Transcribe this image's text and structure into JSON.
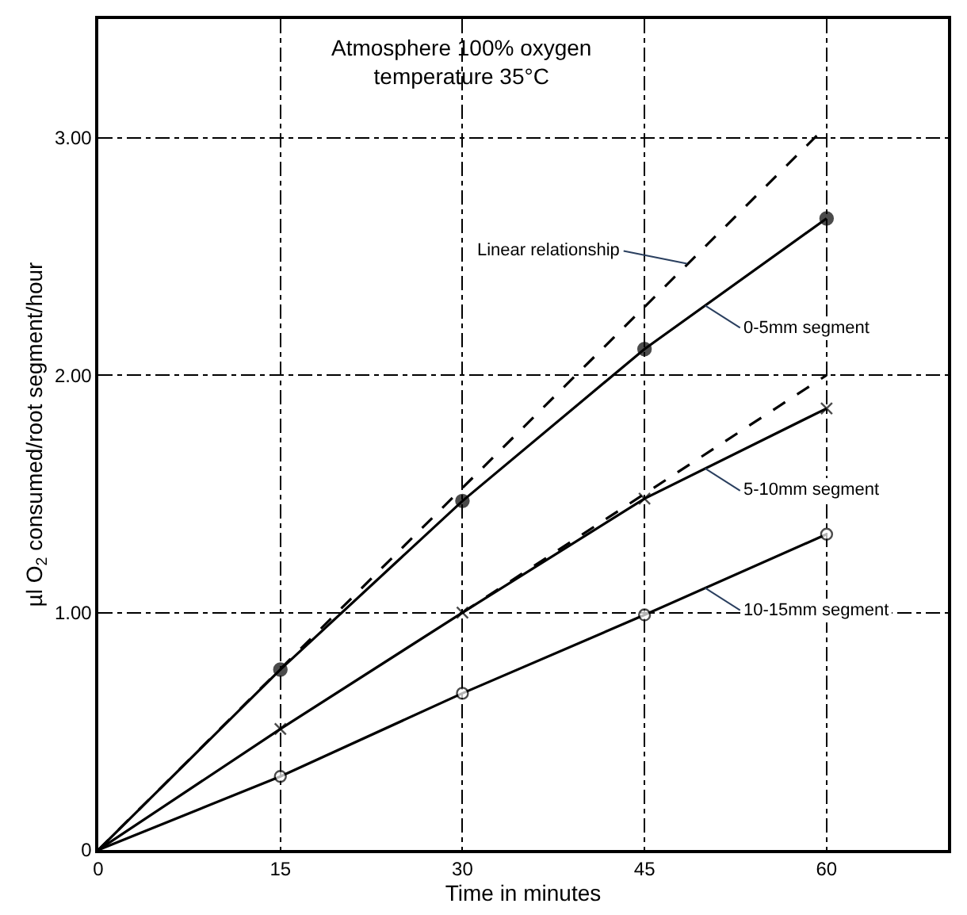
{
  "chart_data": {
    "type": "line",
    "title": "Atmosphere 100% oxygen\ntemperature 35°C",
    "xlabel": "Time in minutes",
    "ylabel": "µl O$_{2}$ consumed/root segment/hour",
    "x": [
      0,
      15,
      30,
      45,
      60
    ],
    "series": [
      {
        "name": "0-5mm segment",
        "color": "#000000",
        "values": [
          0,
          0.76,
          1.47,
          2.11,
          2.66
        ],
        "marker": "circle",
        "line_style": "solid"
      },
      {
        "name": "5-10mm segment",
        "color": "#000000",
        "values": [
          0,
          0.51,
          1.0,
          1.48,
          1.86
        ],
        "marker": "cross",
        "line_style": "solid"
      },
      {
        "name": "10-15mm segment",
        "color": "#000000",
        "values": [
          0,
          0.31,
          0.66,
          0.99,
          1.33
        ],
        "marker": "circle-open",
        "line_style": "solid"
      },
      {
        "color": "#000000",
        "x": [
          0,
          60
        ],
        "values": [
          0,
          3.05
        ],
        "marker": "none",
        "line_style": "dashed"
      },
      {
        "color": "#000000",
        "x": [
          30,
          60
        ],
        "values": [
          1.0,
          2.0
        ],
        "marker": "none",
        "line_style": "dashed"
      }
    ],
    "annotations": [
      {
        "text": "Linear relationship",
        "x": 48.5,
        "y": 2.47
      }
    ],
    "xlim": [
      0,
      70
    ],
    "ylim": [
      0,
      3.5
    ],
    "xticks": [
      0,
      15,
      30,
      45,
      60
    ],
    "yticks": [
      0,
      {
        "value": 1,
        "label": "1.00"
      },
      {
        "value": 2,
        "label": "2.00"
      },
      {
        "value": 3,
        "label": "3.00"
      }
    ],
    "grid": true,
    "legend": false
  }
}
